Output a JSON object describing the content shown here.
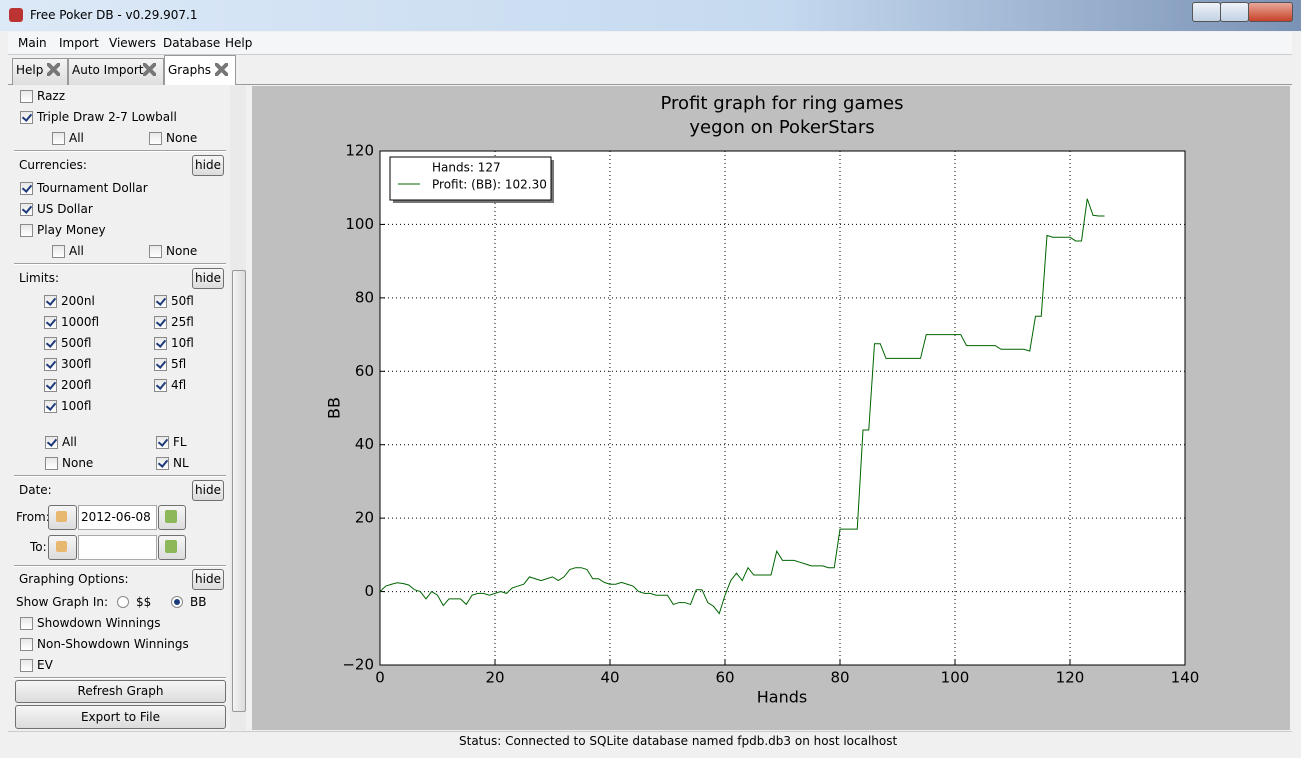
{
  "window": {
    "title": "Free Poker DB - v0.29.907.1"
  },
  "menu": [
    "Main",
    "Import",
    "Viewers",
    "Database",
    "Help"
  ],
  "tabs": [
    "Help",
    "Auto Import",
    "Graphs"
  ],
  "left_panel": {
    "games": {
      "items": [
        {
          "label": "Razz",
          "checked": false
        },
        {
          "label": "Triple Draw 2-7 Lowball",
          "checked": true
        }
      ],
      "all": {
        "label": "All",
        "checked": false
      },
      "none": {
        "label": "None",
        "checked": false
      }
    },
    "currencies": {
      "title": "Currencies:",
      "hide": "hide",
      "items": [
        {
          "label": "Tournament Dollar",
          "checked": true
        },
        {
          "label": "US Dollar",
          "checked": true
        },
        {
          "label": "Play Money",
          "checked": false
        }
      ],
      "all": {
        "label": "All",
        "checked": false
      },
      "none": {
        "label": "None",
        "checked": false
      }
    },
    "limits": {
      "title": "Limits:",
      "hide": "hide",
      "left": [
        {
          "label": "200nl",
          "checked": true
        },
        {
          "label": "1000fl",
          "checked": true
        },
        {
          "label": "500fl",
          "checked": true
        },
        {
          "label": "300fl",
          "checked": true
        },
        {
          "label": "200fl",
          "checked": true
        },
        {
          "label": "100fl",
          "checked": true
        }
      ],
      "right": [
        {
          "label": "50fl",
          "checked": true
        },
        {
          "label": "25fl",
          "checked": true
        },
        {
          "label": "10fl",
          "checked": true
        },
        {
          "label": "5fl",
          "checked": true
        },
        {
          "label": "4fl",
          "checked": true
        }
      ],
      "options": [
        {
          "label": "All",
          "checked": true
        },
        {
          "label": "FL",
          "checked": true
        },
        {
          "label": "None",
          "checked": false
        },
        {
          "label": "NL",
          "checked": true
        }
      ]
    },
    "date": {
      "title": "Date:",
      "hide": "hide",
      "from_label": "From:",
      "from_value": "2012-06-08",
      "to_label": "To:"
    },
    "graphing": {
      "title": "Graphing Options:",
      "hide": "hide",
      "show_in": "Show Graph In:",
      "radios": [
        {
          "label": "$$",
          "selected": false
        },
        {
          "label": "BB",
          "selected": true
        }
      ],
      "items": [
        {
          "label": "Showdown Winnings",
          "checked": false
        },
        {
          "label": "Non-Showdown Winnings",
          "checked": false
        },
        {
          "label": "EV",
          "checked": false
        }
      ]
    },
    "buttons": [
      "Refresh Graph",
      "Export to File"
    ]
  },
  "status": "Status: Connected to SQLite database named fpdb.db3 on host localhost",
  "chart_data": {
    "type": "line",
    "title": "Profit graph for ring games",
    "subtitle": "yegon on PokerStars",
    "xlabel": "Hands",
    "ylabel": "BB",
    "legend_note": "Hands: 127",
    "legend": "upper left",
    "grid": true,
    "xlim": [
      0,
      140
    ],
    "xticks": [
      0,
      20,
      40,
      60,
      80,
      100,
      120,
      140
    ],
    "ylim": [
      -20,
      120
    ],
    "yticks": [
      {
        "value": -20,
        "label": "−20"
      },
      0,
      20,
      40,
      60,
      80,
      100,
      120
    ],
    "x": [
      0,
      1,
      2,
      3,
      4,
      5,
      6,
      7,
      8,
      9,
      10,
      11,
      12,
      13,
      14,
      15,
      16,
      17,
      18,
      19,
      20,
      21,
      22,
      23,
      24,
      25,
      26,
      27,
      28,
      29,
      30,
      31,
      32,
      33,
      34,
      35,
      36,
      37,
      38,
      39,
      40,
      41,
      42,
      43,
      44,
      45,
      46,
      47,
      48,
      49,
      50,
      51,
      52,
      53,
      54,
      55,
      56,
      57,
      58,
      59,
      60,
      61,
      62,
      63,
      64,
      65,
      66,
      67,
      68,
      69,
      70,
      71,
      72,
      73,
      74,
      75,
      76,
      77,
      78,
      79,
      80,
      81,
      82,
      83,
      84,
      85,
      86,
      87,
      88,
      89,
      90,
      91,
      92,
      93,
      94,
      95,
      96,
      97,
      98,
      99,
      100,
      101,
      102,
      103,
      104,
      105,
      106,
      107,
      108,
      109,
      110,
      111,
      112,
      113,
      114,
      115,
      116,
      117,
      118,
      119,
      120,
      121,
      122,
      123,
      124,
      125,
      126
    ],
    "series": [
      {
        "name": "Profit: (BB): 102.30",
        "color": "#006400",
        "values": [
          0,
          1.5,
          2,
          2.4,
          2.2,
          1.8,
          0.5,
          0,
          -2,
          0,
          -1,
          -3.8,
          -2,
          -2,
          -2,
          -3.5,
          -1,
          -0.5,
          -0.5,
          -1,
          -0.5,
          0,
          -0.5,
          1,
          1.5,
          2,
          4,
          3.5,
          3,
          3.5,
          4,
          3,
          4,
          6,
          6.5,
          6.5,
          6,
          3.5,
          3.5,
          2.5,
          2,
          2,
          2.5,
          2,
          1.5,
          0,
          -0.5,
          -0.5,
          -1,
          -1,
          -1,
          -3.5,
          -3,
          -3,
          -3.5,
          0.5,
          0.5,
          -3,
          -4,
          -6,
          -1,
          3,
          5,
          3,
          6.5,
          4.5,
          4.5,
          4.5,
          4.5,
          11,
          8.5,
          8.5,
          8.5,
          8,
          7.5,
          7,
          7,
          7,
          6.5,
          6.5,
          17,
          17,
          17,
          17,
          44,
          44,
          67.5,
          67.5,
          63.5,
          63.5,
          63.5,
          63.5,
          63.5,
          63.5,
          63.5,
          70,
          70,
          70,
          70,
          70,
          70,
          70,
          67,
          67,
          67,
          67,
          67,
          67,
          66,
          66,
          66,
          66,
          66,
          65.5,
          75,
          75,
          97,
          96.5,
          96.5,
          96.5,
          96.5,
          95.5,
          95.5,
          107,
          102.5,
          102.3,
          102.3
        ]
      }
    ]
  }
}
